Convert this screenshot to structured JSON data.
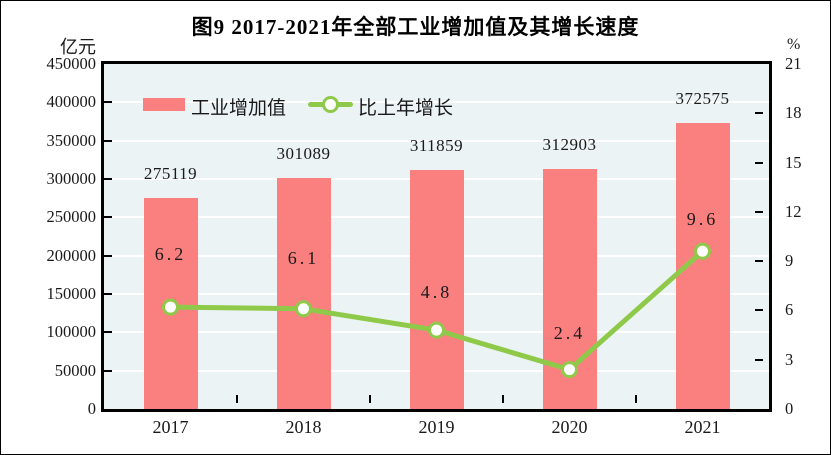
{
  "figure": {
    "title": "图9  2017-2021年全部工业增加值及其增长速度"
  },
  "chart_data": {
    "type": "combo",
    "title": "图9  2017-2021年全部工业增加值及其增长速度",
    "categories": [
      "2017",
      "2018",
      "2019",
      "2020",
      "2021"
    ],
    "series": [
      {
        "name": "工业增加值",
        "type": "bar",
        "axis": "left",
        "values": [
          275119,
          301089,
          311859,
          312903,
          372575
        ],
        "labels": [
          "275119",
          "301089",
          "311859",
          "312903",
          "372575"
        ],
        "color": "#FA7F7F"
      },
      {
        "name": "比上年增长",
        "type": "line",
        "axis": "right",
        "values": [
          6.2,
          6.1,
          4.8,
          2.4,
          9.6
        ],
        "labels": [
          "6.2",
          "6.1",
          "4.8",
          "2.4",
          "9.6"
        ],
        "color": "#8FC94A",
        "marker_fill": "#FFFFFF"
      }
    ],
    "left_axis": {
      "unit": "亿元",
      "min": 0,
      "max": 450000,
      "step": 50000,
      "tick_labels": [
        "0",
        "50000",
        "100000",
        "150000",
        "200000",
        "250000",
        "300000",
        "350000",
        "400000",
        "450000"
      ]
    },
    "right_axis": {
      "unit": "%",
      "min": 0,
      "max": 21,
      "step": 3,
      "tick_labels": [
        "0",
        "3",
        "6",
        "9",
        "12",
        "15",
        "18",
        "21"
      ]
    },
    "legend_position": "top-left-inside",
    "grid": true,
    "plot_bg": "#EBF3F5",
    "gridline_color": "#FFFFFF",
    "growth_label_offsets": [
      53,
      51,
      38,
      37,
      32
    ]
  }
}
